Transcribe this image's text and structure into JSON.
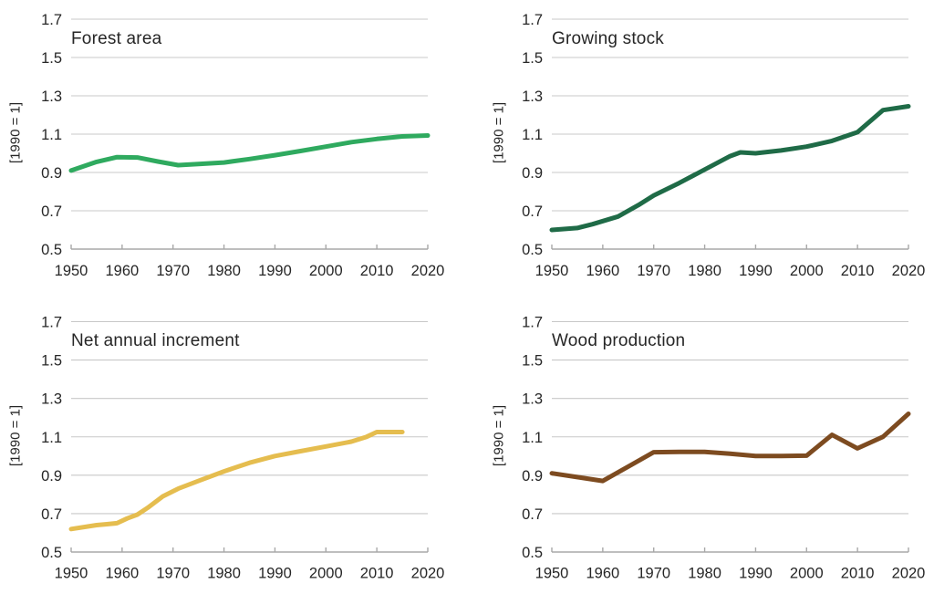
{
  "figure": {
    "background": "#ffffff",
    "text_color": "#262626",
    "grid_color": "#c8c8c8",
    "axis_color": "#a8a8a8",
    "y_axis_label": "[1990 = 1]",
    "y_ticks": [
      "1.7",
      "1.5",
      "1.3",
      "1.1",
      "0.9",
      "0.7",
      "0.5"
    ],
    "x_ticks": [
      "1950",
      "1960",
      "1970",
      "1980",
      "1990",
      "2000",
      "2010",
      "2020"
    ]
  },
  "chart_data": [
    {
      "type": "line",
      "title": "Forest area",
      "ylabel": "[1990 = 1]",
      "color": "#2faa5f",
      "xlim": [
        1950,
        2020
      ],
      "ylim": [
        0.5,
        1.7
      ],
      "grid": true,
      "legend": false,
      "x": [
        1950,
        1955,
        1959,
        1963,
        1967,
        1971,
        1975,
        1980,
        1985,
        1990,
        1995,
        2000,
        2005,
        2010,
        2015,
        2020
      ],
      "values": [
        0.91,
        0.955,
        0.98,
        0.978,
        0.957,
        0.938,
        0.944,
        0.952,
        0.97,
        0.99,
        1.012,
        1.035,
        1.058,
        1.075,
        1.088,
        1.093
      ]
    },
    {
      "type": "line",
      "title": "Growing stock",
      "ylabel": "[1990 = 1]",
      "color": "#1f6b47",
      "xlim": [
        1950,
        2020
      ],
      "ylim": [
        0.5,
        1.7
      ],
      "grid": true,
      "legend": false,
      "x": [
        1950,
        1955,
        1958,
        1963,
        1967,
        1970,
        1975,
        1980,
        1985,
        1987,
        1990,
        1995,
        2000,
        2005,
        2010,
        2015,
        2020
      ],
      "values": [
        0.6,
        0.61,
        0.63,
        0.67,
        0.73,
        0.78,
        0.845,
        0.915,
        0.985,
        1.005,
        1.0,
        1.015,
        1.035,
        1.065,
        1.11,
        1.225,
        1.245
      ]
    },
    {
      "type": "line",
      "title": "Net annual increment",
      "ylabel": "[1990 = 1]",
      "color": "#e5bd4f",
      "xlim": [
        1950,
        2020
      ],
      "ylim": [
        0.5,
        1.7
      ],
      "grid": true,
      "legend": false,
      "x": [
        1950,
        1955,
        1957,
        1959,
        1961,
        1963,
        1965,
        1968,
        1971,
        1975,
        1980,
        1985,
        1990,
        1995,
        2000,
        2005,
        2008,
        2010,
        2015
      ],
      "values": [
        0.62,
        0.64,
        0.645,
        0.65,
        0.675,
        0.695,
        0.73,
        0.79,
        0.83,
        0.87,
        0.92,
        0.965,
        1.0,
        1.025,
        1.05,
        1.075,
        1.1,
        1.125,
        1.125
      ]
    },
    {
      "type": "line",
      "title": "Wood production",
      "ylabel": "[1990 = 1]",
      "color": "#7d4b20",
      "xlim": [
        1950,
        2020
      ],
      "ylim": [
        0.5,
        1.7
      ],
      "grid": true,
      "legend": false,
      "x": [
        1950,
        1955,
        1960,
        1970,
        1975,
        1980,
        1985,
        1990,
        1995,
        2000,
        2005,
        2010,
        2015,
        2020
      ],
      "values": [
        0.91,
        0.89,
        0.87,
        1.02,
        1.022,
        1.022,
        1.012,
        1.0,
        1.0,
        1.002,
        1.11,
        1.04,
        1.1,
        1.22
      ]
    }
  ]
}
